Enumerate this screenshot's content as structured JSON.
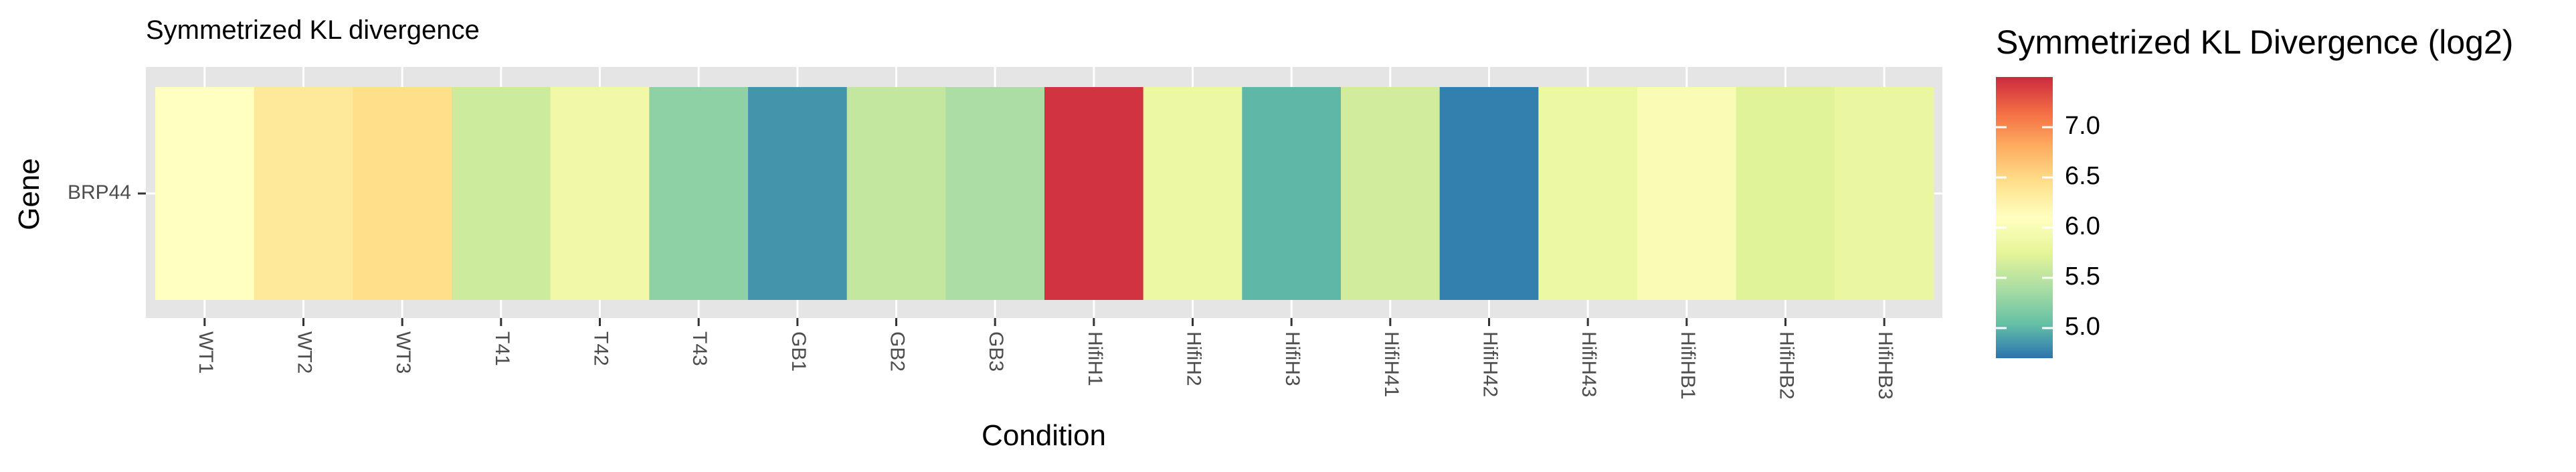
{
  "chart_data": {
    "type": "heatmap",
    "title": "Symmetrized KL divergence",
    "xlabel": "Condition",
    "ylabel": "Gene",
    "rows": [
      "BRP44"
    ],
    "columns": [
      "WT1",
      "WT2",
      "WT3",
      "T41",
      "T42",
      "T43",
      "GB1",
      "GB2",
      "GB3",
      "HifiH1",
      "HifiH2",
      "HifiH3",
      "HifiH41",
      "HifiH42",
      "HifiH43",
      "HifiHB1",
      "HifiHB2",
      "HifiHB3"
    ],
    "values": [
      [
        6.1,
        6.35,
        6.45,
        5.6,
        5.9,
        5.25,
        4.85,
        5.55,
        5.4,
        7.45,
        5.85,
        5.0,
        5.62,
        4.75,
        5.85,
        6.0,
        5.72,
        5.82
      ]
    ],
    "legend": {
      "title": "Symmetrized KL Divergence (log2)",
      "position": "right",
      "min": 4.7,
      "max": 7.5,
      "ticks": [
        5.0,
        5.5,
        6.0,
        6.5,
        7.0
      ],
      "tick_labels": [
        "5.0",
        "5.5",
        "6.0",
        "6.5",
        "7.0"
      ]
    },
    "palette": {
      "name": "Spectral",
      "stops": [
        "#2b74b0",
        "#66c2a5",
        "#abdda4",
        "#e6f598",
        "#ffffbf",
        "#fee08b",
        "#fdae61",
        "#f46d43",
        "#cb2a40"
      ]
    },
    "grid": true,
    "panel_background": "#e5e5e5"
  }
}
